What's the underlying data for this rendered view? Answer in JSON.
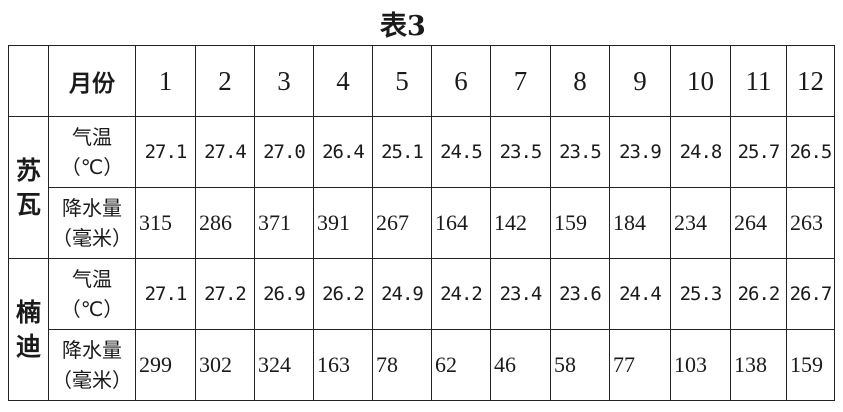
{
  "title": "表3",
  "header": {
    "label": "月份",
    "months": [
      "1",
      "2",
      "3",
      "4",
      "5",
      "6",
      "7",
      "8",
      "9",
      "10",
      "11",
      "12"
    ]
  },
  "cities": [
    {
      "name": "苏瓦",
      "rows": [
        {
          "label": "气温",
          "unit": "（℃）",
          "values": [
            "27.1",
            "27.4",
            "27.0",
            "26.4",
            "25.1",
            "24.5",
            "23.5",
            "23.5",
            "23.9",
            "24.8",
            "25.7",
            "26.5"
          ]
        },
        {
          "label": "降水量",
          "unit": "（毫米）",
          "values": [
            "315",
            "286",
            "371",
            "391",
            "267",
            "164",
            "142",
            "159",
            "184",
            "234",
            "264",
            "263"
          ]
        }
      ]
    },
    {
      "name": "楠迪",
      "rows": [
        {
          "label": "气温",
          "unit": "（℃）",
          "values": [
            "27.1",
            "27.2",
            "26.9",
            "26.2",
            "24.9",
            "24.2",
            "23.4",
            "23.6",
            "24.4",
            "25.3",
            "26.2",
            "26.7"
          ]
        },
        {
          "label": "降水量",
          "unit": "（毫米）",
          "values": [
            "299",
            "302",
            "324",
            "163",
            "78",
            "62",
            "46",
            "58",
            "77",
            "103",
            "138",
            "159"
          ]
        }
      ]
    }
  ]
}
